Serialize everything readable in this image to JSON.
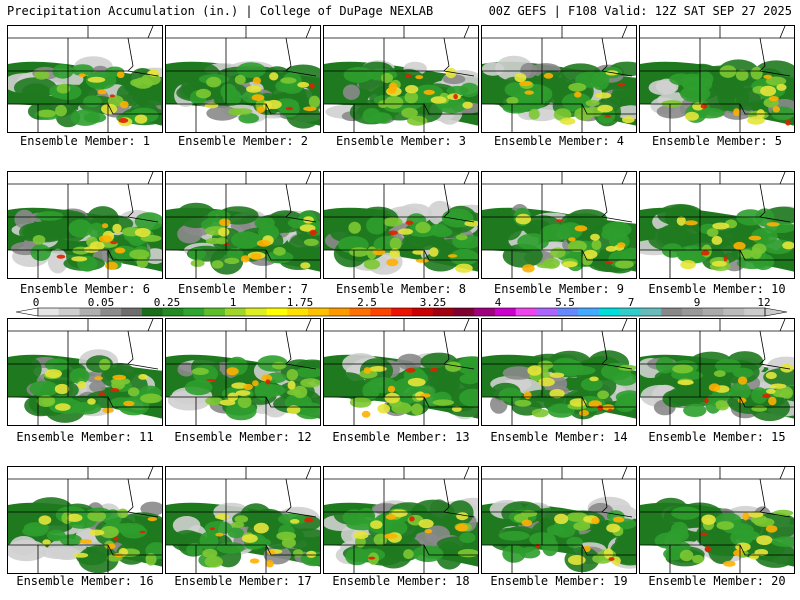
{
  "header": {
    "left": "Precipitation Accumulation (in.) | College of DuPage NEXLAB",
    "right": "00Z GEFS | F108 Valid: 12Z SAT SEP 27 2025"
  },
  "panels": [
    {
      "label": "Ensemble Member: 1"
    },
    {
      "label": "Ensemble Member: 2"
    },
    {
      "label": "Ensemble Member: 3"
    },
    {
      "label": "Ensemble Member: 4"
    },
    {
      "label": "Ensemble Member: 5"
    },
    {
      "label": "Ensemble Member: 6"
    },
    {
      "label": "Ensemble Member: 7"
    },
    {
      "label": "Ensemble Member: 8"
    },
    {
      "label": "Ensemble Member: 9"
    },
    {
      "label": "Ensemble Member: 10"
    },
    {
      "label": "Ensemble Member: 11"
    },
    {
      "label": "Ensemble Member: 12"
    },
    {
      "label": "Ensemble Member: 13"
    },
    {
      "label": "Ensemble Member: 14"
    },
    {
      "label": "Ensemble Member: 15"
    },
    {
      "label": "Ensemble Member: 16"
    },
    {
      "label": "Ensemble Member: 17"
    },
    {
      "label": "Ensemble Member: 18"
    },
    {
      "label": "Ensemble Member: 19"
    },
    {
      "label": "Ensemble Member: 20"
    }
  ],
  "colorbar": {
    "tick_labels": [
      "0",
      "0.05",
      "0.25",
      "1",
      "1.75",
      "2.5",
      "3.25",
      "4",
      "5.5",
      "7",
      "9",
      "12"
    ],
    "colors": [
      "#e6e6e6",
      "#cfcfcf",
      "#b0b0b0",
      "#8c8c8c",
      "#6e6e6e",
      "#1a6e1a",
      "#228b22",
      "#2ea52e",
      "#5cbf2a",
      "#9fd62a",
      "#ddee22",
      "#ffff00",
      "#ffe000",
      "#ffc000",
      "#ff9900",
      "#ff7000",
      "#ff4400",
      "#ee1100",
      "#cc0000",
      "#a00010",
      "#800030",
      "#a00080",
      "#cc00cc",
      "#ee44ee",
      "#aa66ff",
      "#6688ff",
      "#44aaff",
      "#00dddd",
      "#33cccc",
      "#66bbbb",
      "#888888",
      "#999999",
      "#aaaaaa",
      "#bbbbbb",
      "#cccccc"
    ]
  }
}
